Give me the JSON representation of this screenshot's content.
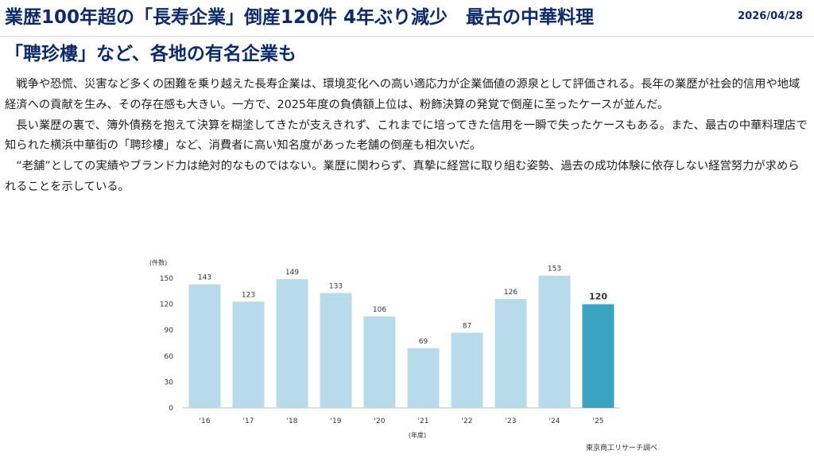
{
  "header": {
    "title_line1": "業歴100年超の「長寿企業」倒産120件 4年ぶり減少　最古の中華料理",
    "title_line2": "「聘珍樓」など、各地の有名企業も",
    "date": "2026/04/28"
  },
  "article": {
    "paragraphs": [
      "戦争や恐慌、災害など多くの困難を乗り越えた長寿企業は、環境変化への高い適応力が企業価値の源泉として評価される。長年の業歴が社会的信用や地域経済への貢献を生み、その存在感も大きい。一方で、2025年度の負債額上位は、粉飾決算の発覚で倒産に至ったケースが並んだ。",
      "長い業歴の裏で、簿外債務を抱えて決算を糊塗してきたが支えきれず、これまでに培ってきた信用を一瞬で失ったケースもある。また、最古の中華料理店で知られた横浜中華街の「聘珍樓」など、消費者に高い知名度があった老舗の倒産も相次いだ。",
      "“老舗”としての実績やブランド力は絶対的なものではない。業歴に関わらず、真摯に経営に取り組む姿勢、過去の成功体験に依存しない経営努力が求められることを示している。"
    ]
  },
  "chart_data": {
    "type": "bar",
    "categories": [
      "'16",
      "'17",
      "'18",
      "'19",
      "'20",
      "'21",
      "'22",
      "'23",
      "'24",
      "'25"
    ],
    "values": [
      143,
      123,
      149,
      133,
      106,
      69,
      87,
      126,
      153,
      120
    ],
    "ylabel": "(件数)",
    "xlabel": "(年度)",
    "yticks": [
      0,
      30,
      60,
      90,
      120,
      150
    ],
    "ylim": [
      0,
      160
    ],
    "highlight_index": 9,
    "colors": {
      "bar": "#b7dbe8",
      "highlight": "#3aa3c2"
    },
    "grid": false,
    "source": "東京商工リサーチ調べ"
  }
}
